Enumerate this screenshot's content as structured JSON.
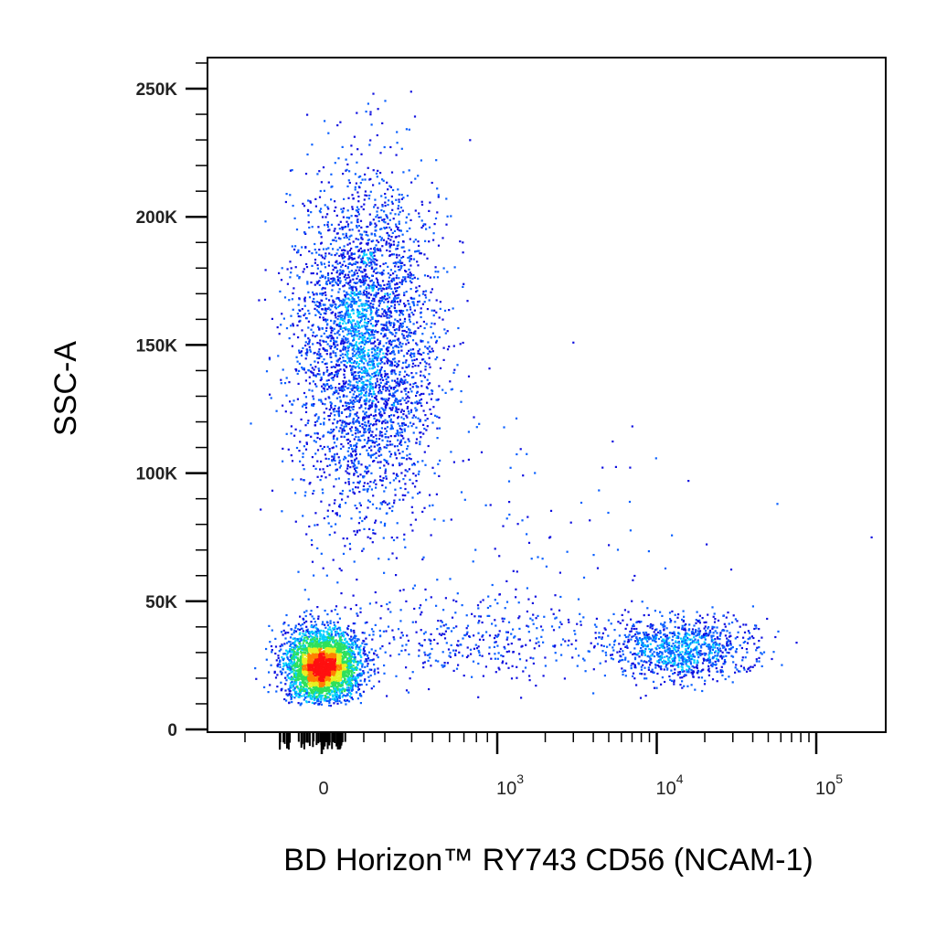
{
  "chart_data": {
    "type": "scatter",
    "title": "",
    "xlabel": "BD Horizon™ RY743  CD56 (NCAM-1)",
    "ylabel": "SSC-A",
    "x_scale": "biexponential",
    "xlim": [
      -300,
      200000
    ],
    "ylim": [
      0,
      262144
    ],
    "grid": false,
    "coloring": "density (blue → cyan → green → yellow → red)",
    "density_colors": [
      "#1010e0",
      "#0a60ff",
      "#00d0ff",
      "#2ee05a",
      "#e8f020",
      "#ff8000",
      "#ff1010"
    ],
    "y_ticks": [
      {
        "value": 0,
        "label": "0"
      },
      {
        "value": 50000,
        "label": "50K"
      },
      {
        "value": 100000,
        "label": "100K"
      },
      {
        "value": 150000,
        "label": "150K"
      },
      {
        "value": 200000,
        "label": "200K"
      },
      {
        "value": 250000,
        "label": "250K"
      }
    ],
    "x_ticks": [
      {
        "value": 0,
        "base": "0",
        "exp": ""
      },
      {
        "value": 1000,
        "base": "10",
        "exp": "3"
      },
      {
        "value": 10000,
        "base": "10",
        "exp": "4"
      },
      {
        "value": 100000,
        "base": "10",
        "exp": "5"
      }
    ],
    "populations": [
      {
        "name": "",
        "x_center": 0,
        "y_center": 25000,
        "x_spread_decades": 0.12,
        "y_spread": 7000,
        "events": 3200
      },
      {
        "name": "",
        "x_center": 200,
        "y_center": 150000,
        "x_spread_decades": 0.22,
        "y_spread": 33000,
        "events": 3600
      },
      {
        "name": "",
        "x_center": 14000,
        "y_center": 32000,
        "x_spread_decades": 0.22,
        "y_spread": 6500,
        "events": 1000
      },
      {
        "name": "",
        "x_center": 800,
        "y_center": 35000,
        "x_spread_decades": 0.45,
        "y_spread": 8000,
        "events": 380
      },
      {
        "name": "",
        "x_center": 1500,
        "y_center": 75000,
        "x_spread_decades": 0.6,
        "y_spread": 25000,
        "events": 120
      }
    ]
  }
}
